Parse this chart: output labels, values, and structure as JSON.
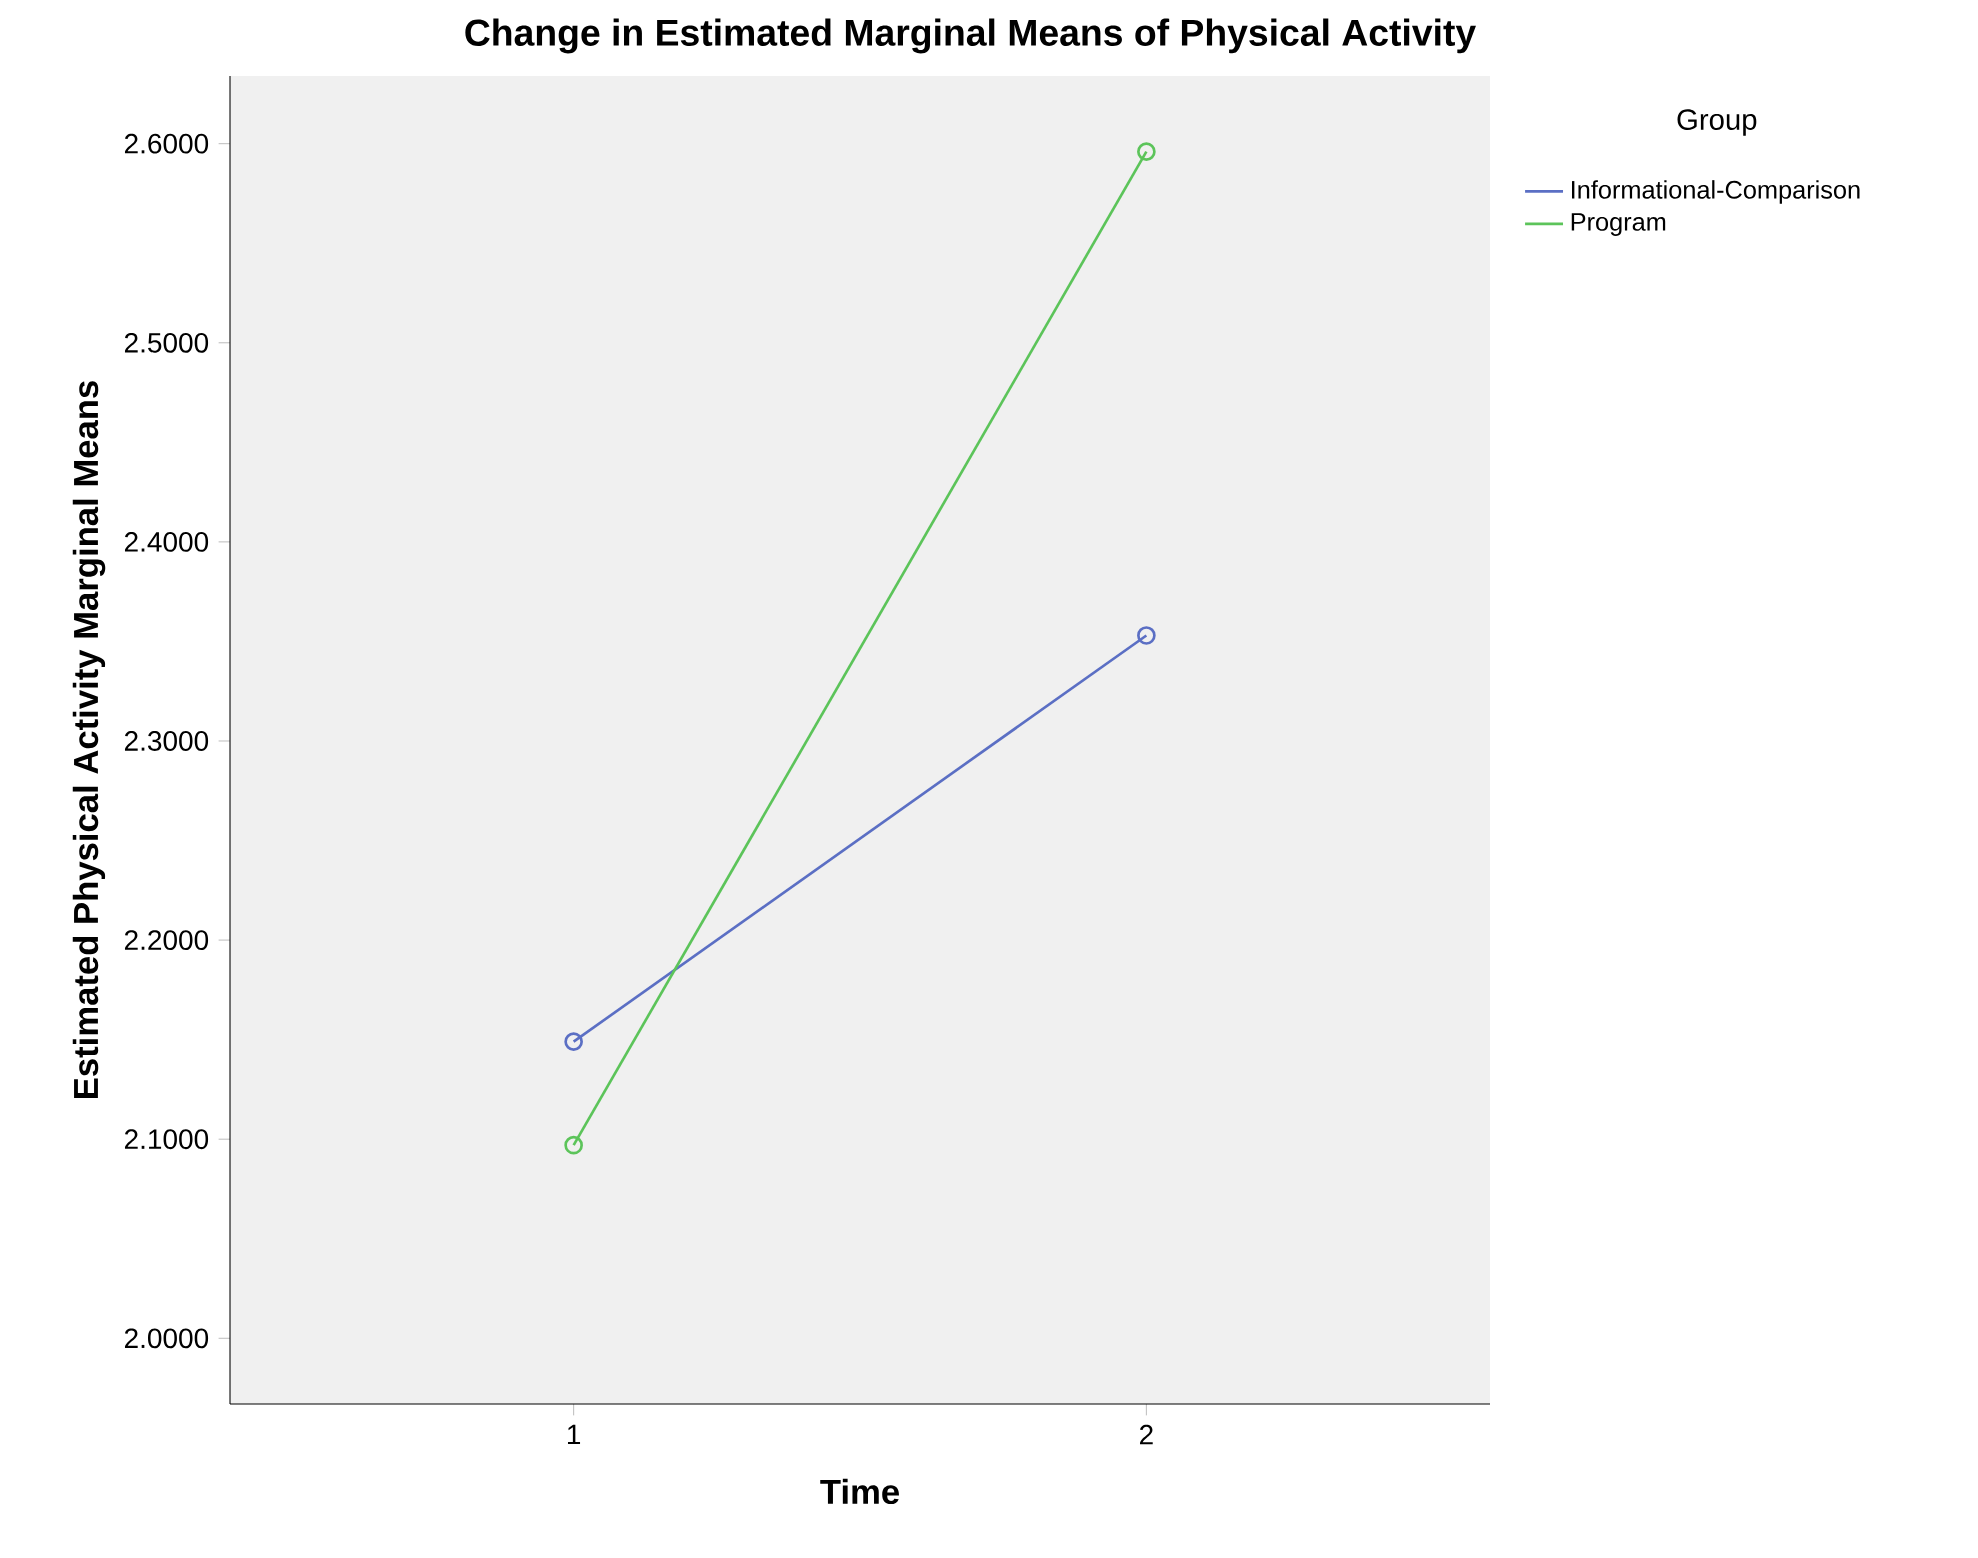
{
  "chart_data": {
    "type": "line",
    "title": "Change in Estimated Marginal Means of Physical Activity",
    "xlabel": "Time",
    "ylabel": "Estimated Physical Activity Marginal Means",
    "legend_title": "Group",
    "categories": [
      "1",
      "2"
    ],
    "series": [
      {
        "name": "Informational-Comparison",
        "color": "#5b6fc4",
        "values": [
          2.149,
          2.353
        ]
      },
      {
        "name": "Program",
        "color": "#5cc45a",
        "values": [
          2.097,
          2.596
        ]
      }
    ],
    "ylim": [
      1.967,
      2.634
    ],
    "yticks": [
      {
        "value": 2.0,
        "label": "2.0000"
      },
      {
        "value": 2.1,
        "label": "2.1000"
      },
      {
        "value": 2.2,
        "label": "2.2000"
      },
      {
        "value": 2.3,
        "label": "2.3000"
      },
      {
        "value": 2.4,
        "label": "2.4000"
      },
      {
        "value": 2.5,
        "label": "2.5000"
      },
      {
        "value": 2.6,
        "label": "2.6000"
      }
    ],
    "legend": "right",
    "marker": "circle"
  }
}
